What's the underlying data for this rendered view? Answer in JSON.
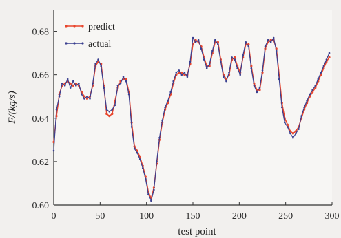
{
  "chart_data": {
    "type": "line",
    "xlabel": "test point",
    "ylabel": "F/(kg/s)",
    "xlim": [
      0,
      300
    ],
    "ylim": [
      0.6,
      0.69
    ],
    "xticks": [
      0,
      50,
      100,
      150,
      200,
      250,
      300
    ],
    "xtick_labels": [
      "0",
      "50",
      "100",
      "150",
      "200",
      "250",
      "300"
    ],
    "yticks": [
      0.6,
      0.62,
      0.64,
      0.66,
      0.68
    ],
    "ytick_labels": [
      "0.60",
      "0.62",
      "0.64",
      "0.66",
      "0.68"
    ],
    "grid": false,
    "legend": "top-left",
    "series": [
      {
        "name": "predict",
        "color": "#e8452c",
        "points": [
          [
            0,
            0.629
          ],
          [
            3,
            0.641
          ],
          [
            6,
            0.651
          ],
          [
            9,
            0.655
          ],
          [
            12,
            0.656
          ],
          [
            15,
            0.657
          ],
          [
            18,
            0.656
          ],
          [
            21,
            0.655
          ],
          [
            24,
            0.656
          ],
          [
            27,
            0.655
          ],
          [
            30,
            0.652
          ],
          [
            33,
            0.65
          ],
          [
            36,
            0.649
          ],
          [
            39,
            0.65
          ],
          [
            42,
            0.655
          ],
          [
            45,
            0.664
          ],
          [
            48,
            0.666
          ],
          [
            51,
            0.665
          ],
          [
            54,
            0.655
          ],
          [
            57,
            0.642
          ],
          [
            60,
            0.641
          ],
          [
            63,
            0.642
          ],
          [
            66,
            0.648
          ],
          [
            69,
            0.654
          ],
          [
            72,
            0.657
          ],
          [
            75,
            0.658
          ],
          [
            78,
            0.658
          ],
          [
            81,
            0.652
          ],
          [
            84,
            0.638
          ],
          [
            87,
            0.627
          ],
          [
            90,
            0.625
          ],
          [
            93,
            0.622
          ],
          [
            96,
            0.618
          ],
          [
            99,
            0.613
          ],
          [
            102,
            0.606
          ],
          [
            105,
            0.603
          ],
          [
            108,
            0.608
          ],
          [
            111,
            0.619
          ],
          [
            114,
            0.63
          ],
          [
            117,
            0.638
          ],
          [
            120,
            0.644
          ],
          [
            123,
            0.647
          ],
          [
            126,
            0.651
          ],
          [
            129,
            0.656
          ],
          [
            132,
            0.66
          ],
          [
            135,
            0.661
          ],
          [
            138,
            0.661
          ],
          [
            141,
            0.66
          ],
          [
            144,
            0.66
          ],
          [
            147,
            0.665
          ],
          [
            150,
            0.674
          ],
          [
            153,
            0.676
          ],
          [
            156,
            0.675
          ],
          [
            159,
            0.673
          ],
          [
            162,
            0.668
          ],
          [
            165,
            0.664
          ],
          [
            168,
            0.664
          ],
          [
            171,
            0.67
          ],
          [
            174,
            0.675
          ],
          [
            177,
            0.675
          ],
          [
            180,
            0.667
          ],
          [
            183,
            0.66
          ],
          [
            186,
            0.658
          ],
          [
            189,
            0.66
          ],
          [
            192,
            0.667
          ],
          [
            195,
            0.668
          ],
          [
            198,
            0.664
          ],
          [
            201,
            0.661
          ],
          [
            204,
            0.668
          ],
          [
            207,
            0.674
          ],
          [
            210,
            0.674
          ],
          [
            213,
            0.664
          ],
          [
            216,
            0.656
          ],
          [
            219,
            0.653
          ],
          [
            222,
            0.653
          ],
          [
            225,
            0.661
          ],
          [
            228,
            0.672
          ],
          [
            231,
            0.675
          ],
          [
            234,
            0.676
          ],
          [
            237,
            0.676
          ],
          [
            240,
            0.672
          ],
          [
            243,
            0.66
          ],
          [
            246,
            0.647
          ],
          [
            249,
            0.64
          ],
          [
            252,
            0.637
          ],
          [
            255,
            0.634
          ],
          [
            258,
            0.633
          ],
          [
            261,
            0.634
          ],
          [
            264,
            0.636
          ],
          [
            267,
            0.64
          ],
          [
            270,
            0.644
          ],
          [
            273,
            0.647
          ],
          [
            276,
            0.65
          ],
          [
            279,
            0.652
          ],
          [
            282,
            0.654
          ],
          [
            285,
            0.657
          ],
          [
            288,
            0.66
          ],
          [
            291,
            0.663
          ],
          [
            294,
            0.666
          ],
          [
            297,
            0.668
          ]
        ]
      },
      {
        "name": "actual",
        "color": "#3a3f8f",
        "points": [
          [
            0,
            0.625
          ],
          [
            3,
            0.644
          ],
          [
            6,
            0.65
          ],
          [
            9,
            0.656
          ],
          [
            12,
            0.655
          ],
          [
            15,
            0.658
          ],
          [
            18,
            0.654
          ],
          [
            21,
            0.657
          ],
          [
            24,
            0.655
          ],
          [
            27,
            0.656
          ],
          [
            30,
            0.651
          ],
          [
            33,
            0.649
          ],
          [
            36,
            0.65
          ],
          [
            39,
            0.649
          ],
          [
            42,
            0.656
          ],
          [
            45,
            0.665
          ],
          [
            48,
            0.667
          ],
          [
            51,
            0.664
          ],
          [
            54,
            0.654
          ],
          [
            57,
            0.644
          ],
          [
            60,
            0.643
          ],
          [
            63,
            0.644
          ],
          [
            66,
            0.646
          ],
          [
            69,
            0.655
          ],
          [
            72,
            0.656
          ],
          [
            75,
            0.659
          ],
          [
            78,
            0.657
          ],
          [
            81,
            0.651
          ],
          [
            84,
            0.636
          ],
          [
            87,
            0.626
          ],
          [
            90,
            0.624
          ],
          [
            93,
            0.621
          ],
          [
            96,
            0.617
          ],
          [
            99,
            0.612
          ],
          [
            102,
            0.605
          ],
          [
            105,
            0.602
          ],
          [
            108,
            0.607
          ],
          [
            111,
            0.62
          ],
          [
            114,
            0.631
          ],
          [
            117,
            0.639
          ],
          [
            120,
            0.645
          ],
          [
            123,
            0.648
          ],
          [
            126,
            0.652
          ],
          [
            129,
            0.657
          ],
          [
            132,
            0.661
          ],
          [
            135,
            0.662
          ],
          [
            138,
            0.66
          ],
          [
            141,
            0.661
          ],
          [
            144,
            0.659
          ],
          [
            147,
            0.666
          ],
          [
            150,
            0.677
          ],
          [
            153,
            0.675
          ],
          [
            156,
            0.676
          ],
          [
            159,
            0.672
          ],
          [
            162,
            0.667
          ],
          [
            165,
            0.663
          ],
          [
            168,
            0.665
          ],
          [
            171,
            0.671
          ],
          [
            174,
            0.676
          ],
          [
            177,
            0.674
          ],
          [
            180,
            0.666
          ],
          [
            183,
            0.659
          ],
          [
            186,
            0.657
          ],
          [
            189,
            0.661
          ],
          [
            192,
            0.668
          ],
          [
            195,
            0.667
          ],
          [
            198,
            0.663
          ],
          [
            201,
            0.66
          ],
          [
            204,
            0.669
          ],
          [
            207,
            0.675
          ],
          [
            210,
            0.673
          ],
          [
            213,
            0.663
          ],
          [
            216,
            0.655
          ],
          [
            219,
            0.652
          ],
          [
            222,
            0.654
          ],
          [
            225,
            0.662
          ],
          [
            228,
            0.673
          ],
          [
            231,
            0.676
          ],
          [
            234,
            0.675
          ],
          [
            237,
            0.677
          ],
          [
            240,
            0.671
          ],
          [
            243,
            0.658
          ],
          [
            246,
            0.645
          ],
          [
            249,
            0.638
          ],
          [
            252,
            0.636
          ],
          [
            255,
            0.633
          ],
          [
            258,
            0.631
          ],
          [
            261,
            0.633
          ],
          [
            264,
            0.635
          ],
          [
            267,
            0.641
          ],
          [
            270,
            0.645
          ],
          [
            273,
            0.648
          ],
          [
            276,
            0.651
          ],
          [
            279,
            0.653
          ],
          [
            282,
            0.655
          ],
          [
            285,
            0.658
          ],
          [
            288,
            0.661
          ],
          [
            291,
            0.664
          ],
          [
            294,
            0.667
          ],
          [
            297,
            0.67
          ]
        ]
      }
    ]
  }
}
